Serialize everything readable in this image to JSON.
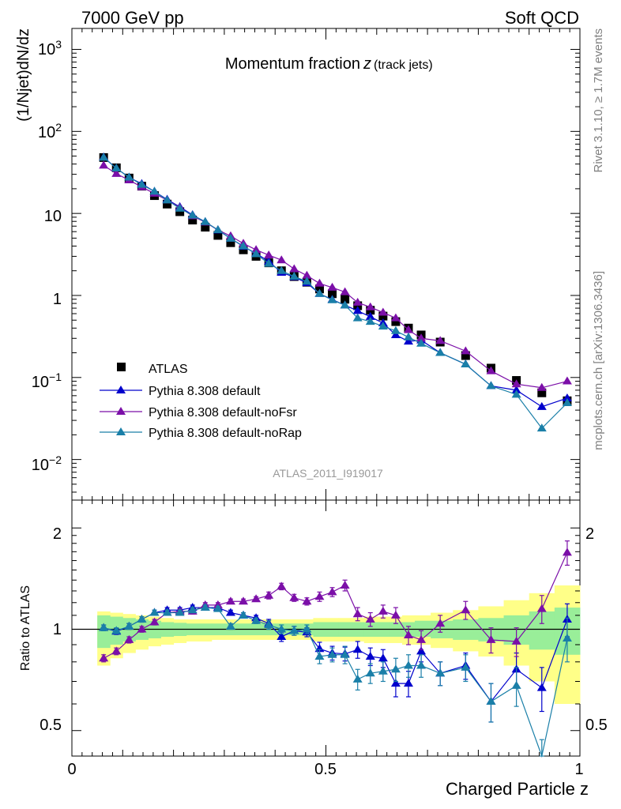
{
  "header": {
    "left_text": "7000 GeV pp",
    "right_text": "Soft QCD"
  },
  "side_text": {
    "rivet": "Rivet 3.1.10, ≥ 1.7M events",
    "mcplots": "mcplots.cern.ch [arXiv:1306.3436]"
  },
  "main_plot": {
    "title": "Momentum fraction",
    "title_var": "z",
    "title_sub": "(track jets)",
    "ylabel": "(1/Njet)dN/dz",
    "analysis_id": "ATLAS_2011_I919017",
    "y_ticks": [
      {
        "value": 0.01,
        "base": "10",
        "exp": "−2"
      },
      {
        "value": 0.1,
        "base": "10",
        "exp": "−1"
      },
      {
        "value": 1,
        "base": "1",
        "exp": ""
      },
      {
        "value": 10,
        "base": "10",
        "exp": ""
      },
      {
        "value": 100,
        "base": "10",
        "exp": "2"
      },
      {
        "value": 1000,
        "base": "10",
        "exp": "3"
      }
    ],
    "legend": [
      {
        "label": "ATLAS",
        "key": "atlas"
      },
      {
        "label": "Pythia 8.308 default",
        "key": "default"
      },
      {
        "label": "Pythia 8.308 default-noFsr",
        "key": "noFsr"
      },
      {
        "label": "Pythia 8.308 default-noRap",
        "key": "noRap"
      }
    ]
  },
  "ratio_plot": {
    "ylabel": "Ratio to ATLAS",
    "y_tick_labels": [
      "0.5",
      "1",
      "2"
    ],
    "x_tick_labels": [
      "0",
      "0.5",
      "1"
    ],
    "xlabel": "Charged Particle z"
  },
  "colors": {
    "atlas": "#000000",
    "default": "#0000cc",
    "noFsr": "#7b0fa8",
    "noRap": "#1a7fa8",
    "band_inner": "#99ee99",
    "band_outer": "#ffff88"
  },
  "chart_data": {
    "type": "line",
    "x": [
      0.0625,
      0.0875,
      0.1125,
      0.1375,
      0.1625,
      0.1875,
      0.2125,
      0.2375,
      0.2625,
      0.2875,
      0.3125,
      0.3375,
      0.3625,
      0.3875,
      0.4125,
      0.4375,
      0.4625,
      0.4875,
      0.5125,
      0.5375,
      0.5625,
      0.5875,
      0.6125,
      0.6375,
      0.6625,
      0.6875,
      0.725,
      0.775,
      0.825,
      0.875,
      0.925,
      0.975
    ],
    "xlim": [
      0,
      1
    ],
    "main_ylim": [
      0.0032,
      1800
    ],
    "main_yscale": "log",
    "ratio_ylim": [
      0.42,
      2.42
    ],
    "ratio_yscale": "log",
    "series": [
      {
        "name": "ATLAS",
        "key": "atlas",
        "marker": "square",
        "values": [
          48,
          36,
          27,
          21.5,
          16.5,
          13,
          10.5,
          8.3,
          6.8,
          5.4,
          4.4,
          3.6,
          3.0,
          2.5,
          2.0,
          1.7,
          1.45,
          1.2,
          1.05,
          0.9,
          0.75,
          0.66,
          0.56,
          0.48,
          0.4,
          0.33,
          0.27,
          0.185,
          0.13,
          0.092,
          0.065,
          0.052
        ],
        "band_inner": [
          [
            0.88,
            1.1
          ],
          [
            0.9,
            1.09
          ],
          [
            0.92,
            1.08
          ],
          [
            0.93,
            1.07
          ],
          [
            0.94,
            1.06
          ],
          [
            0.95,
            1.05
          ],
          [
            0.955,
            1.045
          ],
          [
            0.96,
            1.04
          ],
          [
            0.96,
            1.04
          ],
          [
            0.96,
            1.04
          ],
          [
            0.96,
            1.04
          ],
          [
            0.96,
            1.04
          ],
          [
            0.96,
            1.04
          ],
          [
            0.96,
            1.04
          ],
          [
            0.96,
            1.04
          ],
          [
            0.96,
            1.04
          ],
          [
            0.96,
            1.04
          ],
          [
            0.95,
            1.05
          ],
          [
            0.95,
            1.05
          ],
          [
            0.95,
            1.05
          ],
          [
            0.95,
            1.05
          ],
          [
            0.95,
            1.05
          ],
          [
            0.95,
            1.05
          ],
          [
            0.95,
            1.05
          ],
          [
            0.95,
            1.05
          ],
          [
            0.95,
            1.06
          ],
          [
            0.94,
            1.06
          ],
          [
            0.93,
            1.07
          ],
          [
            0.92,
            1.08
          ],
          [
            0.9,
            1.1
          ],
          [
            0.87,
            1.13
          ],
          [
            0.84,
            1.16
          ]
        ],
        "band_outer": [
          [
            0.78,
            1.13
          ],
          [
            0.82,
            1.12
          ],
          [
            0.85,
            1.11
          ],
          [
            0.87,
            1.1
          ],
          [
            0.89,
            1.09
          ],
          [
            0.9,
            1.08
          ],
          [
            0.91,
            1.07
          ],
          [
            0.92,
            1.07
          ],
          [
            0.92,
            1.07
          ],
          [
            0.93,
            1.07
          ],
          [
            0.93,
            1.07
          ],
          [
            0.93,
            1.07
          ],
          [
            0.93,
            1.07
          ],
          [
            0.93,
            1.07
          ],
          [
            0.93,
            1.07
          ],
          [
            0.93,
            1.07
          ],
          [
            0.93,
            1.07
          ],
          [
            0.92,
            1.08
          ],
          [
            0.92,
            1.08
          ],
          [
            0.92,
            1.08
          ],
          [
            0.92,
            1.08
          ],
          [
            0.91,
            1.09
          ],
          [
            0.91,
            1.09
          ],
          [
            0.91,
            1.09
          ],
          [
            0.9,
            1.1
          ],
          [
            0.9,
            1.1
          ],
          [
            0.88,
            1.12
          ],
          [
            0.86,
            1.14
          ],
          [
            0.83,
            1.17
          ],
          [
            0.78,
            1.22
          ],
          [
            0.7,
            1.28
          ],
          [
            0.6,
            1.35
          ]
        ]
      },
      {
        "name": "Pythia 8.308 default",
        "key": "default",
        "marker": "triangle",
        "values": [
          48.5,
          35.5,
          27.5,
          23.0,
          18.5,
          14.8,
          12.0,
          9.6,
          7.9,
          6.25,
          4.95,
          3.95,
          3.25,
          2.6,
          1.9,
          1.68,
          1.42,
          1.05,
          0.89,
          0.76,
          0.65,
          0.55,
          0.46,
          0.33,
          0.275,
          0.285,
          0.2,
          0.145,
          0.079,
          0.07,
          0.044,
          0.056
        ],
        "ratio": [
          1.01,
          0.985,
          1.02,
          1.07,
          1.12,
          1.14,
          1.14,
          1.16,
          1.16,
          1.16,
          1.12,
          1.1,
          1.08,
          1.04,
          0.95,
          0.99,
          0.98,
          0.875,
          0.85,
          0.845,
          0.87,
          0.83,
          0.82,
          0.69,
          0.69,
          0.86,
          0.74,
          0.78,
          0.61,
          0.76,
          0.67,
          1.07
        ],
        "ratio_err": [
          0.02,
          0.02,
          0.02,
          0.02,
          0.02,
          0.02,
          0.02,
          0.02,
          0.02,
          0.02,
          0.02,
          0.02,
          0.02,
          0.03,
          0.03,
          0.03,
          0.03,
          0.04,
          0.04,
          0.04,
          0.05,
          0.05,
          0.05,
          0.06,
          0.06,
          0.06,
          0.06,
          0.07,
          0.08,
          0.09,
          0.1,
          0.12
        ]
      },
      {
        "name": "Pythia 8.308 default-noFsr",
        "key": "noFsr",
        "marker": "triangle",
        "values": [
          38.5,
          30.5,
          25.5,
          21.0,
          17.5,
          14.5,
          11.8,
          9.3,
          7.8,
          6.3,
          5.3,
          4.3,
          3.6,
          3.1,
          2.7,
          2.1,
          1.75,
          1.4,
          1.25,
          1.1,
          0.82,
          0.72,
          0.62,
          0.53,
          0.38,
          0.3,
          0.28,
          0.21,
          0.12,
          0.083,
          0.075,
          0.09
        ],
        "ratio": [
          0.82,
          0.86,
          0.93,
          1.0,
          1.05,
          1.12,
          1.13,
          1.13,
          1.18,
          1.18,
          1.21,
          1.21,
          1.23,
          1.26,
          1.34,
          1.24,
          1.21,
          1.25,
          1.29,
          1.35,
          1.11,
          1.07,
          1.13,
          1.1,
          0.96,
          0.93,
          1.04,
          1.14,
          0.93,
          0.92,
          1.15,
          1.69
        ],
        "ratio_err": [
          0.02,
          0.02,
          0.02,
          0.02,
          0.02,
          0.02,
          0.02,
          0.02,
          0.02,
          0.02,
          0.02,
          0.02,
          0.02,
          0.03,
          0.03,
          0.03,
          0.03,
          0.04,
          0.04,
          0.05,
          0.05,
          0.05,
          0.05,
          0.06,
          0.06,
          0.06,
          0.06,
          0.07,
          0.08,
          0.09,
          0.11,
          0.14
        ]
      },
      {
        "name": "Pythia 8.308 default-noRap",
        "key": "noRap",
        "marker": "triangle",
        "values": [
          48.0,
          35.5,
          27.5,
          22.5,
          18.5,
          14.5,
          11.5,
          9.5,
          7.9,
          6.3,
          4.95,
          4.0,
          3.2,
          2.45,
          2.0,
          1.7,
          1.48,
          1.05,
          0.88,
          0.76,
          0.53,
          0.48,
          0.42,
          0.37,
          0.31,
          0.26,
          0.2,
          0.145,
          0.079,
          0.062,
          0.024,
          0.049
        ],
        "ratio": [
          1.01,
          0.99,
          1.02,
          1.07,
          1.12,
          1.12,
          1.12,
          1.14,
          1.16,
          1.15,
          1.02,
          1.1,
          1.06,
          1.03,
          1.0,
          0.99,
          1.0,
          0.83,
          0.84,
          0.84,
          0.71,
          0.74,
          0.75,
          0.76,
          0.78,
          0.78,
          0.74,
          0.77,
          0.61,
          0.68,
          0.37,
          0.94
        ],
        "ratio_err": [
          0.02,
          0.02,
          0.02,
          0.02,
          0.02,
          0.02,
          0.02,
          0.02,
          0.02,
          0.02,
          0.02,
          0.02,
          0.02,
          0.03,
          0.03,
          0.03,
          0.03,
          0.04,
          0.04,
          0.05,
          0.05,
          0.05,
          0.05,
          0.06,
          0.06,
          0.06,
          0.06,
          0.07,
          0.08,
          0.09,
          0.1,
          0.14
        ]
      }
    ]
  }
}
